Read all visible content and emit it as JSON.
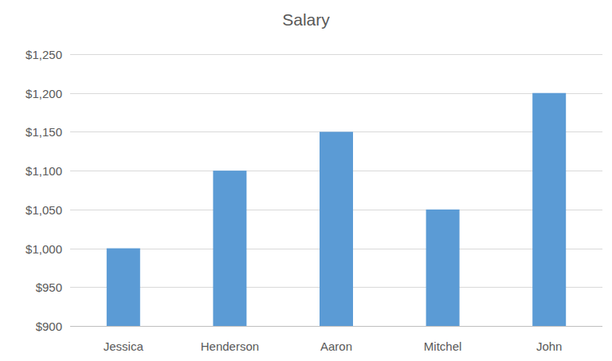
{
  "chart_data": {
    "type": "bar",
    "title": "Salary",
    "categories": [
      "Jessica",
      "Henderson",
      "Aaron",
      "Mitchel",
      "John"
    ],
    "values": [
      1000,
      1100,
      1150,
      1050,
      1200
    ],
    "color": "#5b9bd5",
    "ylim": [
      900,
      1250
    ],
    "yticks": [
      {
        "value": 900,
        "label": "$900"
      },
      {
        "value": 950,
        "label": "$950"
      },
      {
        "value": 1000,
        "label": "$1,000"
      },
      {
        "value": 1050,
        "label": "$1,050"
      },
      {
        "value": 1100,
        "label": "$1,100"
      },
      {
        "value": 1150,
        "label": "$1,150"
      },
      {
        "value": 1200,
        "label": "$1,200"
      },
      {
        "value": 1250,
        "label": "$1,250"
      }
    ],
    "grid": true
  }
}
